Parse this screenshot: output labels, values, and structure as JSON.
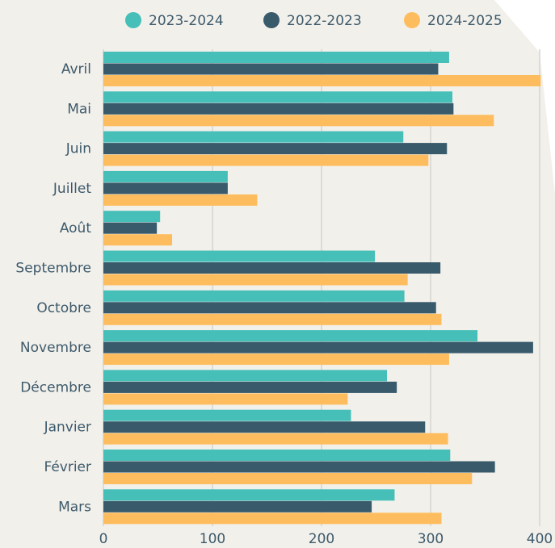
{
  "chart_data": {
    "type": "barh",
    "categories": [
      "Avril",
      "Mai",
      "Juin",
      "Juillet",
      "Août",
      "Septembre",
      "Octobre",
      "Novembre",
      "Décembre",
      "Janvier",
      "Février",
      "Mars"
    ],
    "series": [
      {
        "name": "2023-2024",
        "color": "#45bfb8",
        "values": [
          317,
          320,
          275,
          114,
          52,
          249,
          276,
          343,
          260,
          227,
          318,
          267
        ]
      },
      {
        "name": "2022-2023",
        "color": "#385a6b",
        "values": [
          307,
          321,
          315,
          114,
          49,
          309,
          305,
          394,
          269,
          295,
          359,
          246
        ]
      },
      {
        "name": "2024-2025",
        "color": "#fdbd5f",
        "values": [
          401,
          358,
          298,
          141,
          63,
          279,
          310,
          317,
          224,
          316,
          338,
          310
        ]
      }
    ],
    "xlim": [
      0,
      400
    ],
    "xticks": [
      0,
      100,
      200,
      300,
      400
    ],
    "grid": true
  }
}
